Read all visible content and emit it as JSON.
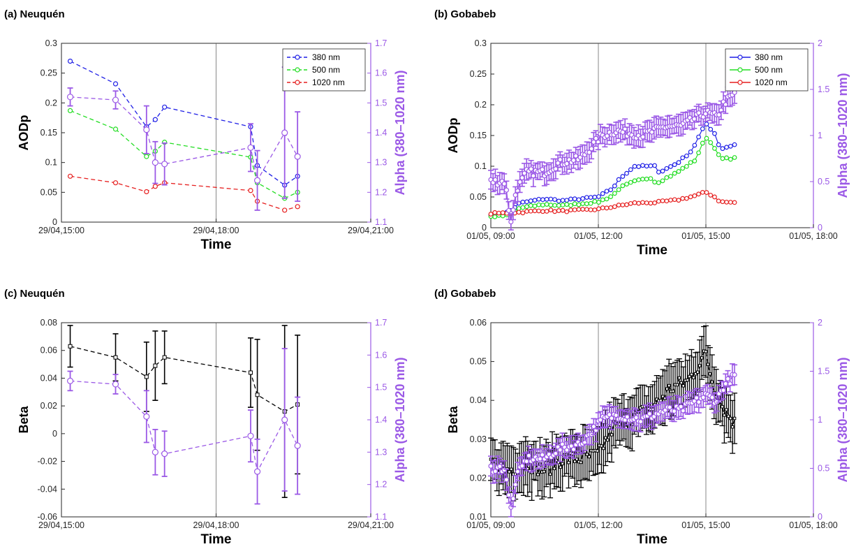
{
  "colors": {
    "c380": "#1f1fe6",
    "c500": "#22dd22",
    "c1020": "#e61f1f",
    "alpha": "#9b59e6",
    "beta": "#000000",
    "axis": "#262626"
  },
  "chart_data": [
    {
      "id": "a",
      "panel_title": "(a) Neuquén",
      "type": "line",
      "line_style": "dashed",
      "x_ticks": [
        "29/04,15:00",
        "29/04,18:00",
        "29/04,21:00"
      ],
      "xlim": [
        15.0,
        21.0
      ],
      "divider_x": 18.0,
      "xlabel": "Time",
      "ylabel": "AODp",
      "ylabel_right": "Alpha (380–1020 nm)",
      "ylim": [
        0,
        0.3
      ],
      "y_ticks": [
        "0",
        "0.05",
        "0.1",
        "0.15",
        "0.2",
        "0.25",
        "0.3"
      ],
      "ylim_right": [
        1.1,
        1.7
      ],
      "y_ticks_right": [
        "1.1",
        "1.2",
        "1.3",
        "1.4",
        "1.5",
        "1.6",
        "1.7"
      ],
      "legend": {
        "position": "top-right",
        "entries": [
          "380 nm",
          "500 nm",
          "1020 nm"
        ]
      },
      "series": [
        {
          "name": "380 nm",
          "color_key": "c380",
          "x": [
            15.17,
            16.05,
            16.65,
            16.82,
            17.0,
            18.67,
            18.8,
            19.33,
            19.58
          ],
          "values": [
            0.27,
            0.232,
            0.16,
            0.172,
            0.193,
            0.16,
            0.095,
            0.062,
            0.077
          ]
        },
        {
          "name": "500 nm",
          "color_key": "c500",
          "x": [
            15.17,
            16.05,
            16.65,
            16.82,
            17.0,
            18.67,
            18.8,
            19.33,
            19.58
          ],
          "values": [
            0.187,
            0.156,
            0.11,
            0.119,
            0.134,
            0.109,
            0.066,
            0.04,
            0.05
          ]
        },
        {
          "name": "1020 nm",
          "color_key": "c1020",
          "x": [
            15.17,
            16.05,
            16.65,
            16.82,
            17.0,
            18.67,
            18.8,
            19.33,
            19.58
          ],
          "values": [
            0.077,
            0.066,
            0.051,
            0.06,
            0.066,
            0.053,
            0.035,
            0.02,
            0.026
          ]
        }
      ],
      "alpha": {
        "x": [
          15.17,
          16.05,
          16.65,
          16.82,
          17.0,
          18.67,
          18.8,
          19.33,
          19.58
        ],
        "values": [
          1.52,
          1.51,
          1.41,
          1.3,
          1.295,
          1.35,
          1.24,
          1.4,
          1.32
        ],
        "err": [
          0.03,
          0.03,
          0.08,
          0.07,
          0.07,
          0.08,
          0.1,
          0.22,
          0.15
        ]
      }
    },
    {
      "id": "b",
      "panel_title": "(b) Gobabeb",
      "type": "line",
      "line_style": "solid",
      "x_ticks": [
        "01/05, 09:00",
        "01/05, 12:00",
        "01/05, 15:00",
        "01/05, 18:00"
      ],
      "xlim": [
        9.0,
        18.0
      ],
      "dividers_x": [
        12.0,
        15.0
      ],
      "xlabel": "Time",
      "ylabel": "AODp",
      "ylabel_right": "Alpha (380–1020 nm)",
      "ylim": [
        0,
        0.3
      ],
      "y_ticks": [
        "0",
        "0.05",
        "0.1",
        "0.15",
        "0.2",
        "0.25",
        "0.3"
      ],
      "ylim_right": [
        0,
        2
      ],
      "y_ticks_right": [
        "0",
        "0.5",
        "1",
        "1.5",
        "2"
      ],
      "legend": {
        "position": "top-right",
        "entries": [
          "380 nm",
          "500 nm",
          "1020 nm"
        ]
      },
      "series": [
        {
          "name": "380 nm",
          "color_key": "c380",
          "knots": [
            [
              9.0,
              0.022
            ],
            [
              9.5,
              0.025
            ],
            [
              9.8,
              0.04
            ],
            [
              10.5,
              0.047
            ],
            [
              11.0,
              0.044
            ],
            [
              12.0,
              0.05
            ],
            [
              12.4,
              0.064
            ],
            [
              12.6,
              0.08
            ],
            [
              13.0,
              0.1
            ],
            [
              13.6,
              0.1
            ],
            [
              13.7,
              0.09
            ],
            [
              14.2,
              0.105
            ],
            [
              14.6,
              0.125
            ],
            [
              15.0,
              0.17
            ],
            [
              15.25,
              0.153
            ],
            [
              15.4,
              0.128
            ],
            [
              15.8,
              0.135
            ]
          ]
        },
        {
          "name": "500 nm",
          "color_key": "c500",
          "knots": [
            [
              9.0,
              0.018
            ],
            [
              9.5,
              0.02
            ],
            [
              9.8,
              0.032
            ],
            [
              10.5,
              0.038
            ],
            [
              11.0,
              0.036
            ],
            [
              12.0,
              0.042
            ],
            [
              12.4,
              0.052
            ],
            [
              12.6,
              0.065
            ],
            [
              13.0,
              0.075
            ],
            [
              13.5,
              0.082
            ],
            [
              13.6,
              0.072
            ],
            [
              14.2,
              0.09
            ],
            [
              14.7,
              0.11
            ],
            [
              15.0,
              0.148
            ],
            [
              15.25,
              0.13
            ],
            [
              15.4,
              0.112
            ],
            [
              15.8,
              0.113
            ]
          ]
        },
        {
          "name": "1020 nm",
          "color_key": "c1020",
          "knots": [
            [
              9.0,
              0.023
            ],
            [
              9.8,
              0.025
            ],
            [
              10.5,
              0.028
            ],
            [
              11.0,
              0.027
            ],
            [
              12.0,
              0.03
            ],
            [
              12.5,
              0.035
            ],
            [
              13.0,
              0.04
            ],
            [
              13.6,
              0.041
            ],
            [
              14.2,
              0.045
            ],
            [
              14.7,
              0.052
            ],
            [
              15.0,
              0.058
            ],
            [
              15.25,
              0.05
            ],
            [
              15.4,
              0.042
            ],
            [
              15.8,
              0.041
            ]
          ]
        }
      ],
      "alpha_knots": [
        [
          9.0,
          0.5
        ],
        [
          9.4,
          0.5
        ],
        [
          9.5,
          0.2
        ],
        [
          9.58,
          0.05
        ],
        [
          9.7,
          0.4
        ],
        [
          10.0,
          0.6
        ],
        [
          10.5,
          0.6
        ],
        [
          10.9,
          0.7
        ],
        [
          11.5,
          0.75
        ],
        [
          12.1,
          1.0
        ],
        [
          12.5,
          1.05
        ],
        [
          13.2,
          1.0
        ],
        [
          13.9,
          1.1
        ],
        [
          14.3,
          1.1
        ],
        [
          15.0,
          1.25
        ],
        [
          15.3,
          1.2
        ],
        [
          15.5,
          1.35
        ],
        [
          15.8,
          1.45
        ]
      ],
      "alpha_err": 0.1
    },
    {
      "id": "c",
      "panel_title": "(c) Neuquén",
      "type": "line",
      "line_style": "dashed",
      "x_ticks": [
        "29/04,15:00",
        "29/04,18:00",
        "29/04,21:00"
      ],
      "xlim": [
        15.0,
        21.0
      ],
      "divider_x": 18.0,
      "xlabel": "Time",
      "ylabel": "Beta",
      "ylabel_right": "Alpha (380–1020 nm)",
      "ylim": [
        -0.06,
        0.08
      ],
      "y_ticks": [
        "-0.06",
        "-0.04",
        "-0.02",
        "0",
        "0.02",
        "0.04",
        "0.06",
        "0.08"
      ],
      "ylim_right": [
        1.1,
        1.7
      ],
      "y_ticks_right": [
        "1.1",
        "1.2",
        "1.3",
        "1.4",
        "1.5",
        "1.6",
        "1.7"
      ],
      "beta": {
        "x": [
          15.17,
          16.05,
          16.65,
          16.82,
          17.0,
          18.67,
          18.8,
          19.33,
          19.58
        ],
        "values": [
          0.063,
          0.055,
          0.041,
          0.049,
          0.055,
          0.044,
          0.028,
          0.016,
          0.021
        ],
        "err": [
          0.015,
          0.017,
          0.025,
          0.025,
          0.019,
          0.025,
          0.04,
          0.062,
          0.05
        ]
      },
      "alpha": {
        "x": [
          15.17,
          16.05,
          16.65,
          16.82,
          17.0,
          18.67,
          18.8,
          19.33,
          19.58
        ],
        "values": [
          1.52,
          1.51,
          1.41,
          1.3,
          1.295,
          1.35,
          1.24,
          1.4,
          1.32
        ],
        "err": [
          0.03,
          0.03,
          0.08,
          0.07,
          0.07,
          0.08,
          0.1,
          0.22,
          0.15
        ]
      }
    },
    {
      "id": "d",
      "panel_title": "(d) Gobabeb",
      "type": "line",
      "line_style": "dashed",
      "x_ticks": [
        "01/05, 09:00",
        "01/05, 12:00",
        "01/05, 15:00",
        "01/05, 18:00"
      ],
      "xlim": [
        9.0,
        18.0
      ],
      "dividers_x": [
        12.0,
        15.0
      ],
      "xlabel": "Time",
      "ylabel": "Beta",
      "ylabel_right": "Alpha (380–1020 nm)",
      "ylim": [
        0.01,
        0.06
      ],
      "y_ticks": [
        "0.01",
        "0.02",
        "0.03",
        "0.04",
        "0.05",
        "0.06"
      ],
      "ylim_right": [
        0,
        2
      ],
      "y_ticks_right": [
        "0",
        "0.5",
        "1",
        "1.5",
        "2"
      ],
      "beta_knots": [
        [
          9.0,
          0.024
        ],
        [
          9.5,
          0.022
        ],
        [
          10.0,
          0.024
        ],
        [
          10.5,
          0.022
        ],
        [
          11.0,
          0.025
        ],
        [
          11.5,
          0.025
        ],
        [
          12.0,
          0.026
        ],
        [
          12.4,
          0.033
        ],
        [
          13.0,
          0.036
        ],
        [
          13.5,
          0.038
        ],
        [
          14.0,
          0.043
        ],
        [
          14.5,
          0.045
        ],
        [
          15.0,
          0.052
        ],
        [
          15.2,
          0.044
        ],
        [
          15.5,
          0.038
        ],
        [
          15.8,
          0.034
        ]
      ],
      "beta_err": 0.006,
      "alpha_knots": [
        [
          9.0,
          0.5
        ],
        [
          9.4,
          0.5
        ],
        [
          9.5,
          0.2
        ],
        [
          9.58,
          0.05
        ],
        [
          9.7,
          0.4
        ],
        [
          10.0,
          0.6
        ],
        [
          10.5,
          0.6
        ],
        [
          10.9,
          0.7
        ],
        [
          11.5,
          0.75
        ],
        [
          12.1,
          1.0
        ],
        [
          12.5,
          1.05
        ],
        [
          13.2,
          1.0
        ],
        [
          13.9,
          1.1
        ],
        [
          14.3,
          1.1
        ],
        [
          15.0,
          1.25
        ],
        [
          15.3,
          1.2
        ],
        [
          15.5,
          1.35
        ],
        [
          15.8,
          1.45
        ]
      ],
      "alpha_err": 0.1
    }
  ]
}
